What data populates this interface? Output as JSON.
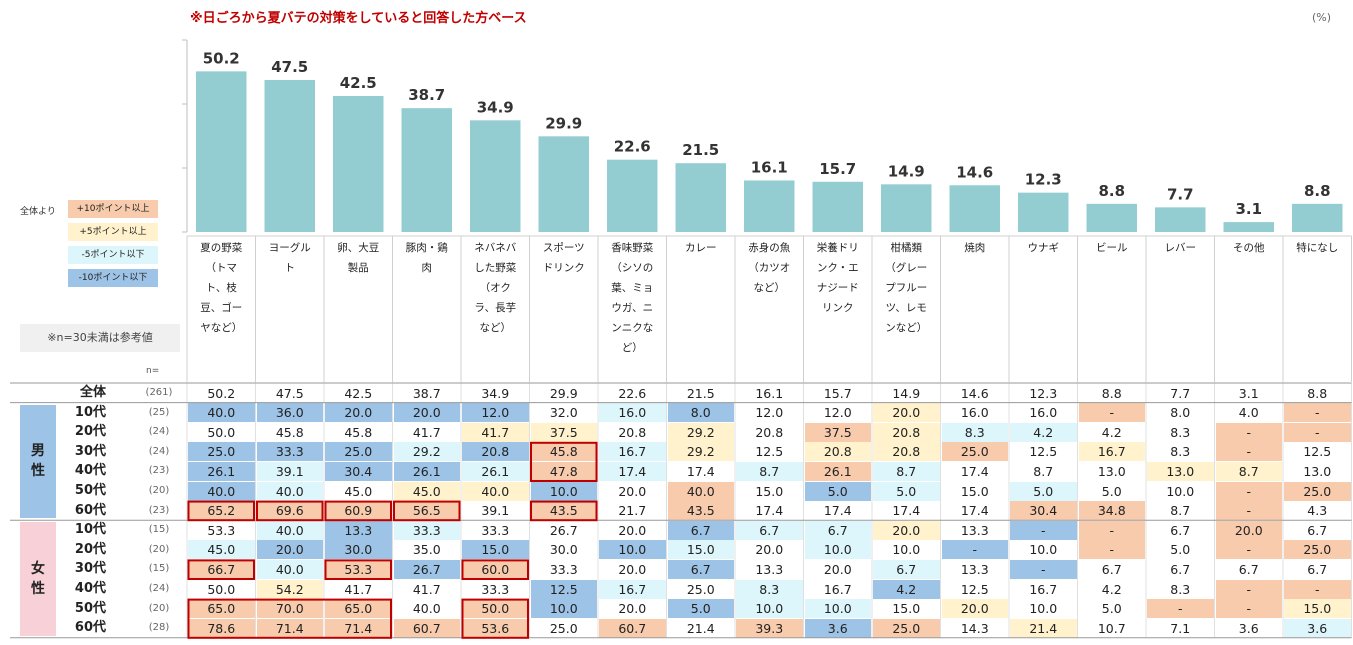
{
  "note": "※日ごろから夏バテの対策をしていると回答した方ベース",
  "unit": "(%)",
  "legend": {
    "title": "全体より",
    "items": [
      {
        "label": "+10ポイント以上",
        "color": "#f8cbad"
      },
      {
        "label": "+5ポイント以上",
        "color": "#fff2cc"
      },
      {
        "label": "-5ポイント以下",
        "color": "#ddf6fb"
      },
      {
        "label": "-10ポイント以下",
        "color": "#9dc3e6"
      }
    ]
  },
  "reference_note": "※n=30未満は参考値",
  "n_label": "n=",
  "colors": {
    "bar": "#93cdd1",
    "hi10": "#f8cbad",
    "hi5": "#fff2cc",
    "lo5": "#ddf6fb",
    "lo10": "#9dc3e6",
    "highlight_border": "#c00000"
  },
  "chart_data": {
    "type": "bar",
    "categories": [
      [
        "夏の野菜",
        "（トマ",
        "ト、枝",
        "豆、ゴー",
        "ヤなど）"
      ],
      [
        "ヨーグル",
        "ト"
      ],
      [
        "卵、大豆",
        "製品"
      ],
      [
        "豚肉・鶏",
        "肉"
      ],
      [
        "ネバネバ",
        "した野菜",
        "（オク",
        "ラ、長芋",
        "など）"
      ],
      [
        "スポーツ",
        "ドリンク"
      ],
      [
        "香味野菜",
        "（シソの",
        "葉、ミョ",
        "ウガ、ニ",
        "ンニクな",
        "ど）"
      ],
      [
        "カレー"
      ],
      [
        "赤身の魚",
        "（カツオ",
        "など）"
      ],
      [
        "栄養ドリ",
        "ンク・エ",
        "ナジード",
        "リンク"
      ],
      [
        "柑橘類",
        "（グレー",
        "プフルー",
        "ツ、レモ",
        "ンなど）"
      ],
      [
        "焼肉"
      ],
      [
        "ウナギ"
      ],
      [
        "ビール"
      ],
      [
        "レバー"
      ],
      [
        "その他"
      ],
      [
        "特になし"
      ]
    ],
    "values": [
      50.2,
      47.5,
      42.5,
      38.7,
      34.9,
      29.9,
      22.6,
      21.5,
      16.1,
      15.7,
      14.9,
      14.6,
      12.3,
      8.8,
      7.7,
      3.1,
      8.8
    ],
    "value_labels": [
      "50.2",
      "47.5",
      "42.5",
      "38.7",
      "34.9",
      "29.9",
      "22.6",
      "21.5",
      "16.1",
      "15.7",
      "14.9",
      "14.6",
      "12.3",
      "8.8",
      "7.7",
      "3.1",
      "8.8"
    ],
    "ylim": [
      0,
      60
    ],
    "table": {
      "groups": [
        {
          "label": "男性",
          "color": "#9dc3e6",
          "rows": [
            1,
            6
          ]
        },
        {
          "label": "女性",
          "color": "#f8d0d8",
          "rows": [
            7,
            12
          ]
        }
      ],
      "rows": [
        {
          "label": "全体",
          "n": "(261)",
          "values": [
            "50.2",
            "47.5",
            "42.5",
            "38.7",
            "34.9",
            "29.9",
            "22.6",
            "21.5",
            "16.1",
            "15.7",
            "14.9",
            "14.6",
            "12.3",
            "8.8",
            "7.7",
            "3.1",
            "8.8"
          ]
        },
        {
          "label": "10代",
          "n": "(25)",
          "values": [
            "40.0",
            "36.0",
            "20.0",
            "20.0",
            "12.0",
            "32.0",
            "16.0",
            "8.0",
            "12.0",
            "12.0",
            "20.0",
            "16.0",
            "16.0",
            "-",
            "8.0",
            "4.0",
            "-"
          ]
        },
        {
          "label": "20代",
          "n": "(24)",
          "values": [
            "50.0",
            "45.8",
            "45.8",
            "41.7",
            "41.7",
            "37.5",
            "20.8",
            "29.2",
            "20.8",
            "37.5",
            "20.8",
            "8.3",
            "4.2",
            "4.2",
            "8.3",
            "-",
            "-"
          ]
        },
        {
          "label": "30代",
          "n": "(24)",
          "values": [
            "25.0",
            "33.3",
            "25.0",
            "29.2",
            "20.8",
            "45.8",
            "16.7",
            "29.2",
            "12.5",
            "20.8",
            "20.8",
            "25.0",
            "12.5",
            "16.7",
            "8.3",
            "-",
            "12.5"
          ]
        },
        {
          "label": "40代",
          "n": "(23)",
          "values": [
            "26.1",
            "39.1",
            "30.4",
            "26.1",
            "26.1",
            "47.8",
            "17.4",
            "17.4",
            "8.7",
            "26.1",
            "8.7",
            "17.4",
            "8.7",
            "13.0",
            "13.0",
            "8.7",
            "13.0"
          ]
        },
        {
          "label": "50代",
          "n": "(20)",
          "values": [
            "40.0",
            "40.0",
            "45.0",
            "45.0",
            "40.0",
            "10.0",
            "20.0",
            "40.0",
            "15.0",
            "5.0",
            "5.0",
            "15.0",
            "5.0",
            "5.0",
            "10.0",
            "-",
            "25.0"
          ]
        },
        {
          "label": "60代",
          "n": "(23)",
          "values": [
            "65.2",
            "69.6",
            "60.9",
            "56.5",
            "39.1",
            "43.5",
            "21.7",
            "43.5",
            "17.4",
            "17.4",
            "17.4",
            "17.4",
            "30.4",
            "34.8",
            "8.7",
            "-",
            "4.3"
          ]
        },
        {
          "label": "10代",
          "n": "(15)",
          "values": [
            "53.3",
            "40.0",
            "13.3",
            "33.3",
            "33.3",
            "26.7",
            "20.0",
            "6.7",
            "6.7",
            "6.7",
            "20.0",
            "13.3",
            "-",
            "-",
            "6.7",
            "20.0",
            "6.7"
          ]
        },
        {
          "label": "20代",
          "n": "(20)",
          "values": [
            "45.0",
            "20.0",
            "30.0",
            "35.0",
            "15.0",
            "30.0",
            "10.0",
            "15.0",
            "20.0",
            "10.0",
            "10.0",
            "-",
            "10.0",
            "-",
            "5.0",
            "-",
            "25.0"
          ]
        },
        {
          "label": "30代",
          "n": "(15)",
          "values": [
            "66.7",
            "40.0",
            "53.3",
            "26.7",
            "60.0",
            "33.3",
            "20.0",
            "6.7",
            "13.3",
            "20.0",
            "6.7",
            "13.3",
            "-",
            "6.7",
            "6.7",
            "6.7",
            "6.7"
          ]
        },
        {
          "label": "40代",
          "n": "(24)",
          "values": [
            "50.0",
            "54.2",
            "41.7",
            "41.7",
            "33.3",
            "12.5",
            "16.7",
            "25.0",
            "8.3",
            "16.7",
            "4.2",
            "12.5",
            "16.7",
            "4.2",
            "8.3",
            "-",
            "-"
          ]
        },
        {
          "label": "50代",
          "n": "(20)",
          "values": [
            "65.0",
            "70.0",
            "65.0",
            "40.0",
            "50.0",
            "10.0",
            "20.0",
            "5.0",
            "10.0",
            "10.0",
            "15.0",
            "20.0",
            "10.0",
            "5.0",
            "-",
            "-",
            "15.0"
          ]
        },
        {
          "label": "60代",
          "n": "(28)",
          "values": [
            "78.6",
            "71.4",
            "71.4",
            "60.7",
            "53.6",
            "25.0",
            "60.7",
            "21.4",
            "39.3",
            "3.6",
            "25.0",
            "14.3",
            "21.4",
            "10.7",
            "7.1",
            "3.6",
            "3.6"
          ]
        }
      ],
      "highlights": [
        {
          "rows": [
            3,
            4
          ],
          "cols": [
            5,
            5
          ]
        },
        {
          "rows": [
            6,
            6
          ],
          "cols": [
            0,
            0
          ]
        },
        {
          "rows": [
            6,
            6
          ],
          "cols": [
            1,
            1
          ]
        },
        {
          "rows": [
            6,
            6
          ],
          "cols": [
            2,
            2
          ]
        },
        {
          "rows": [
            6,
            6
          ],
          "cols": [
            3,
            3
          ]
        },
        {
          "rows": [
            6,
            6
          ],
          "cols": [
            5,
            5
          ]
        },
        {
          "rows": [
            9,
            9
          ],
          "cols": [
            0,
            0
          ]
        },
        {
          "rows": [
            9,
            9
          ],
          "cols": [
            2,
            2
          ]
        },
        {
          "rows": [
            9,
            9
          ],
          "cols": [
            4,
            4
          ]
        },
        {
          "rows": [
            11,
            12
          ],
          "cols": [
            0,
            2
          ]
        },
        {
          "rows": [
            11,
            12
          ],
          "cols": [
            4,
            4
          ]
        }
      ]
    }
  }
}
